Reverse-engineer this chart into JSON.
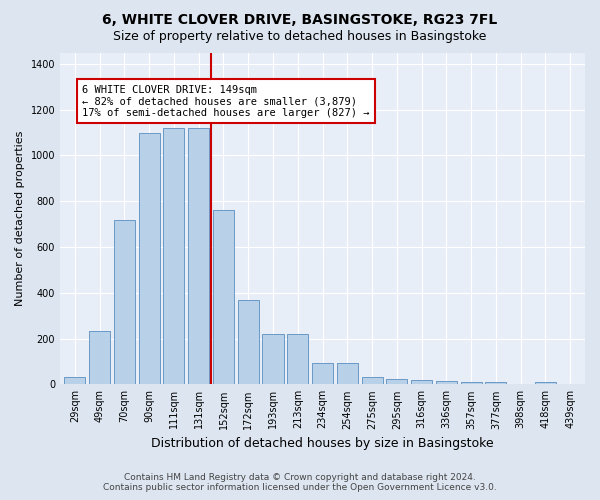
{
  "title": "6, WHITE CLOVER DRIVE, BASINGSTOKE, RG23 7FL",
  "subtitle": "Size of property relative to detached houses in Basingstoke",
  "xlabel": "Distribution of detached houses by size in Basingstoke",
  "ylabel": "Number of detached properties",
  "categories": [
    "29sqm",
    "49sqm",
    "70sqm",
    "90sqm",
    "111sqm",
    "131sqm",
    "152sqm",
    "172sqm",
    "193sqm",
    "213sqm",
    "234sqm",
    "254sqm",
    "275sqm",
    "295sqm",
    "316sqm",
    "336sqm",
    "357sqm",
    "377sqm",
    "398sqm",
    "418sqm",
    "439sqm"
  ],
  "values": [
    30,
    235,
    720,
    1100,
    1120,
    1120,
    760,
    370,
    220,
    220,
    95,
    95,
    30,
    25,
    20,
    15,
    10,
    10,
    0,
    10,
    0
  ],
  "bar_color": "#b8d0e8",
  "bar_edge_color": "#5a8fc0",
  "vline_x_index": 5.5,
  "vline_color": "#cc0000",
  "annotation_text": "6 WHITE CLOVER DRIVE: 149sqm\n← 82% of detached houses are smaller (3,879)\n17% of semi-detached houses are larger (827) →",
  "annotation_box_color": "#ffffff",
  "annotation_box_edge": "#cc0000",
  "ylim": [
    0,
    1450
  ],
  "footer1": "Contains HM Land Registry data © Crown copyright and database right 2024.",
  "footer2": "Contains public sector information licensed under the Open Government Licence v3.0.",
  "bg_color": "#dde5f0",
  "plot_bg_color": "#e8eef8",
  "title_fontsize": 10,
  "subtitle_fontsize": 9,
  "xlabel_fontsize": 9,
  "ylabel_fontsize": 8,
  "tick_fontsize": 7,
  "footer_fontsize": 6.5,
  "annotation_fontsize": 7.5
}
